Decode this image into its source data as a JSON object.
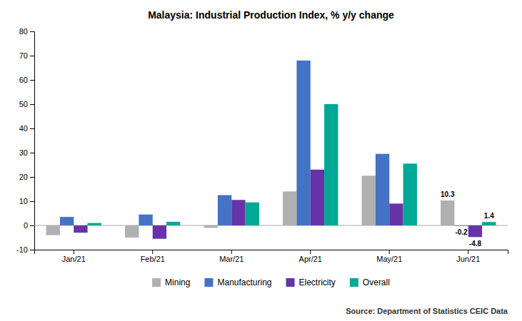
{
  "chart_data": {
    "type": "bar",
    "title": "Malaysia: Industrial Production Index, % y/y change",
    "categories": [
      "Jan/21",
      "Feb/21",
      "Mar/21",
      "Apr/21",
      "May/21",
      "Jun/21"
    ],
    "series": [
      {
        "name": "Mining",
        "color": "#b0b0b0",
        "values": [
          -4.0,
          -5.0,
          -1.0,
          14.0,
          20.5,
          10.3
        ]
      },
      {
        "name": "Manufacturing",
        "color": "#4472c4",
        "values": [
          3.5,
          4.5,
          12.5,
          68.0,
          29.5,
          -0.2
        ]
      },
      {
        "name": "Electricity",
        "color": "#6633aa",
        "values": [
          -3.0,
          -5.5,
          10.5,
          23.0,
          9.0,
          -4.8
        ]
      },
      {
        "name": "Overall",
        "color": "#00a896",
        "values": [
          1.0,
          1.5,
          9.5,
          50.0,
          25.5,
          1.4
        ]
      }
    ],
    "annotations": [
      {
        "text": "10.3",
        "x": "Jun/21",
        "series": "Mining",
        "y": 10.3
      },
      {
        "text": "-0.2",
        "x": "Jun/21",
        "series": "Manufacturing",
        "y": -0.2
      },
      {
        "text": "-4.8",
        "x": "Jun/21",
        "series": "Electricity",
        "y": -4.8
      },
      {
        "text": "1.4",
        "x": "Jun/21",
        "series": "Overall",
        "y": 1.4
      }
    ],
    "source": "Source: Department of Statistics CEIC Data",
    "ylim": [
      -10,
      80
    ],
    "yticks": [
      -10,
      0,
      10,
      20,
      30,
      40,
      50,
      60,
      70,
      80
    ],
    "grid": false,
    "legend": "bottom"
  }
}
